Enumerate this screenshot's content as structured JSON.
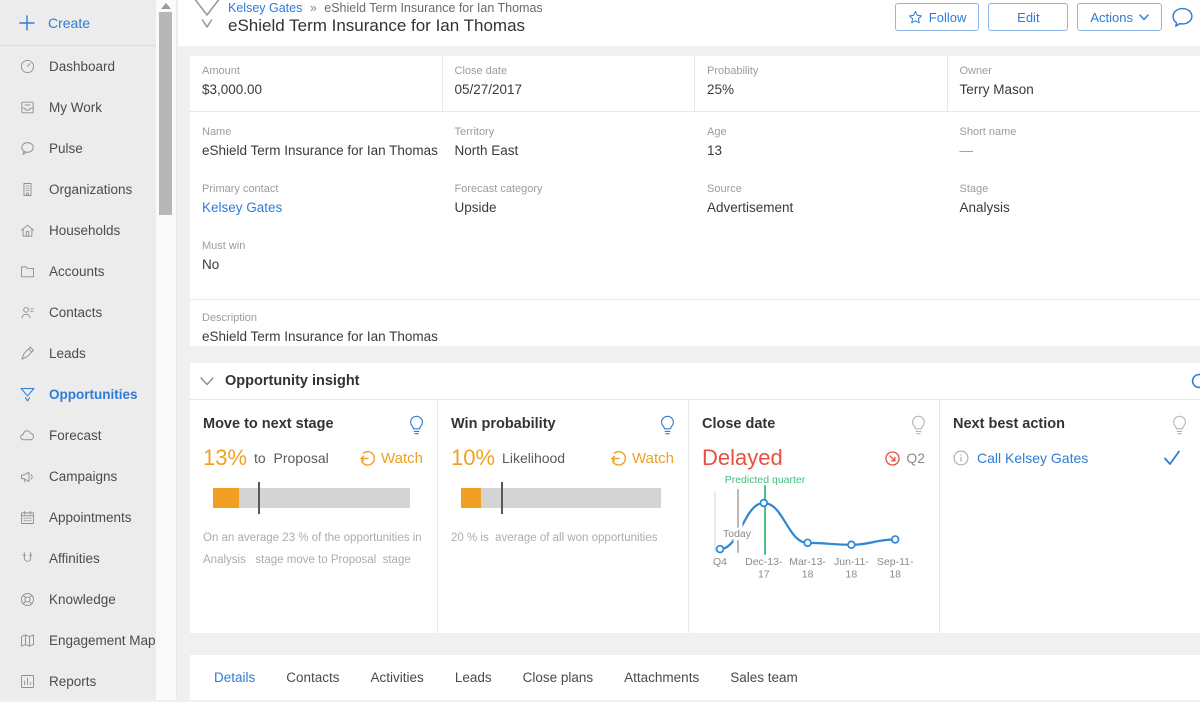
{
  "colors": {
    "accent_blue": "#2e7cd6",
    "orange": "#f0a124",
    "red": "#e8503f",
    "green": "#3fbf7d"
  },
  "sidebar": {
    "create_label": "Create",
    "items": [
      {
        "label": "Dashboard",
        "icon": "dashboard-icon",
        "active": false
      },
      {
        "label": "My Work",
        "icon": "my-work-icon",
        "active": false
      },
      {
        "label": "Pulse",
        "icon": "pulse-icon",
        "active": false
      },
      {
        "label": "Organizations",
        "icon": "organizations-icon",
        "active": false
      },
      {
        "label": "Households",
        "icon": "households-icon",
        "active": false
      },
      {
        "label": "Accounts",
        "icon": "accounts-icon",
        "active": false
      },
      {
        "label": "Contacts",
        "icon": "contacts-icon",
        "active": false
      },
      {
        "label": "Leads",
        "icon": "leads-icon",
        "active": false
      },
      {
        "label": "Opportunities",
        "icon": "opportunities-icon",
        "active": true
      },
      {
        "label": "Forecast",
        "icon": "forecast-icon",
        "active": false
      },
      {
        "label": "Campaigns",
        "icon": "campaigns-icon",
        "active": false
      },
      {
        "label": "Appointments",
        "icon": "appointments-icon",
        "active": false
      },
      {
        "label": "Affinities",
        "icon": "affinities-icon",
        "active": false
      },
      {
        "label": "Knowledge",
        "icon": "knowledge-icon",
        "active": false
      },
      {
        "label": "Engagement Map",
        "icon": "engagement-map-icon",
        "active": false
      },
      {
        "label": "Reports",
        "icon": "reports-icon",
        "active": false
      }
    ]
  },
  "header": {
    "breadcrumb": {
      "parent": "Kelsey Gates",
      "separator": "»",
      "current": "eShield Term Insurance for Ian Thomas"
    },
    "title": "eShield Term Insurance for Ian Thomas",
    "buttons": {
      "follow": "Follow",
      "edit": "Edit",
      "actions": "Actions"
    }
  },
  "fields": {
    "summary": [
      {
        "label": "Amount",
        "value": "$3,000.00"
      },
      {
        "label": "Close date",
        "value": "05/27/2017"
      },
      {
        "label": "Probability",
        "value": "25%"
      },
      {
        "label": "Owner",
        "value": "Terry Mason"
      }
    ],
    "grid": [
      {
        "label": "Name",
        "value": "eShield Term Insurance for Ian Thomas"
      },
      {
        "label": "Territory",
        "value": "North East"
      },
      {
        "label": "Age",
        "value": "13"
      },
      {
        "label": "Short name",
        "value": "—"
      },
      {
        "label": "Primary contact",
        "value": "Kelsey Gates"
      },
      {
        "label": "Forecast category",
        "value": "Upside"
      },
      {
        "label": "Source",
        "value": "Advertisement"
      },
      {
        "label": "Stage",
        "value": "Analysis"
      },
      {
        "label": "Must win",
        "value": "No"
      }
    ],
    "description": {
      "label": "Description",
      "value": "eShield Term Insurance for Ian Thomas"
    }
  },
  "insight": {
    "title": "Opportunity insight",
    "cards": {
      "move_to_next_stage": {
        "title": "Move to next stage",
        "percent": "13%",
        "percent_suffix": "to  Proposal",
        "watch_label": "Watch",
        "bar": {
          "fill_pct": 13,
          "marker_pct": 23
        },
        "caption": "On an average 23 % of the opportunities in\nAnalysis   stage move to Proposal  stage"
      },
      "win_probability": {
        "title": "Win probability",
        "percent": "10%",
        "percent_suffix": "Likelihood",
        "watch_label": "Watch",
        "bar": {
          "fill_pct": 10,
          "marker_pct": 20
        },
        "caption": "20 % is  average of all won opportunities"
      },
      "close_date": {
        "title": "Close date",
        "status": "Delayed",
        "quarter": "Q2",
        "chart_data": {
          "type": "line",
          "predicted_label": "Predicted quarter",
          "today_label": "Today",
          "x_labels": [
            "Q4",
            "Dec-13-17",
            "Mar-13-18",
            "Jun-11-18",
            "Sep-11-18"
          ],
          "x_label_lines": [
            [
              "Q4"
            ],
            [
              "Dec-13-",
              "17"
            ],
            [
              "Mar-13-",
              "18"
            ],
            [
              "Jun-11-",
              "18"
            ],
            [
              "Sep-11-",
              "18"
            ]
          ],
          "values_norm": [
            0.04,
            1.0,
            0.17,
            0.13,
            0.24
          ],
          "predicted_index": 1
        }
      },
      "next_best_action": {
        "title": "Next best action",
        "action_label": "Call Kelsey Gates"
      }
    }
  },
  "tabs": [
    {
      "label": "Details",
      "active": true
    },
    {
      "label": "Contacts",
      "active": false
    },
    {
      "label": "Activities",
      "active": false
    },
    {
      "label": "Leads",
      "active": false
    },
    {
      "label": "Close plans",
      "active": false
    },
    {
      "label": "Attachments",
      "active": false
    },
    {
      "label": "Sales team",
      "active": false
    }
  ]
}
